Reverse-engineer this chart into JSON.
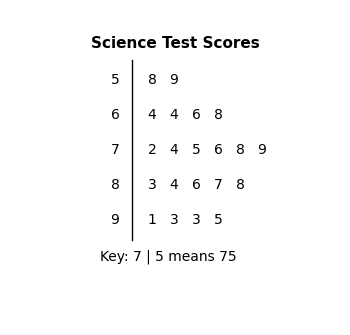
{
  "title": "Science Test Scores",
  "stems": [
    "5",
    "6",
    "7",
    "8",
    "9"
  ],
  "leaves": [
    [
      "8",
      "9"
    ],
    [
      "4",
      "4",
      "6",
      "8"
    ],
    [
      "2",
      "4",
      "5",
      "6",
      "8",
      "9"
    ],
    [
      "3",
      "4",
      "6",
      "7",
      "8"
    ],
    [
      "1",
      "3",
      "3",
      "5"
    ]
  ],
  "key_text": "Key: 7 | 5 means 75",
  "background_color": "#ffffff",
  "text_color": "#000000",
  "title_fontsize": 11,
  "body_fontsize": 10,
  "key_fontsize": 10
}
